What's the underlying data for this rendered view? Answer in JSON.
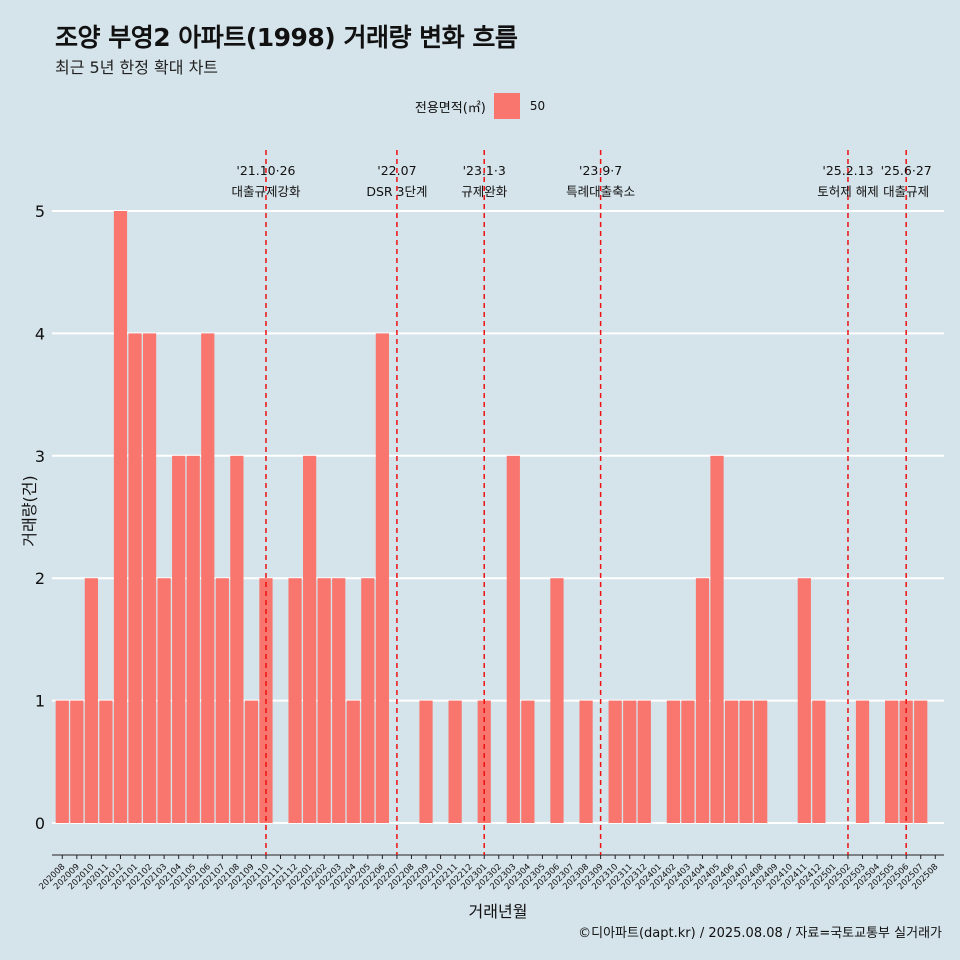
{
  "title": "조양 부영2 아파트(1998) 거래량 변화 흐름",
  "subtitle": "최근 5년 한정 확대 차트",
  "caption": "©디아파트(dapt.kr) / 2025.08.08 / 자료=국토교통부 실거래가",
  "chart_data": {
    "type": "bar",
    "xlabel": "거래년월",
    "ylabel": "거래량(건)",
    "legend": {
      "title": "전용면적(㎡)",
      "position": "top",
      "entries": [
        {
          "label": "50",
          "color": "#f8766d"
        }
      ]
    },
    "ylim": [
      0,
      5
    ],
    "yticks": [
      0,
      1,
      2,
      3,
      4,
      5
    ],
    "grid": true,
    "bar_color": "#f8766d",
    "categories": [
      "202008",
      "202009",
      "202010",
      "202011",
      "202012",
      "202101",
      "202102",
      "202103",
      "202104",
      "202105",
      "202106",
      "202107",
      "202108",
      "202109",
      "202110",
      "202111",
      "202112",
      "202201",
      "202202",
      "202203",
      "202204",
      "202205",
      "202206",
      "202207",
      "202208",
      "202209",
      "202210",
      "202211",
      "202212",
      "202301",
      "202302",
      "202303",
      "202304",
      "202305",
      "202306",
      "202307",
      "202308",
      "202309",
      "202310",
      "202311",
      "202312",
      "202401",
      "202402",
      "202403",
      "202404",
      "202405",
      "202406",
      "202407",
      "202408",
      "202409",
      "202410",
      "202411",
      "202412",
      "202501",
      "202502",
      "202503",
      "202504",
      "202505",
      "202506",
      "202507",
      "202508"
    ],
    "series": [
      {
        "name": "50",
        "values": [
          1,
          1,
          2,
          1,
          5,
          4,
          4,
          2,
          3,
          3,
          4,
          2,
          3,
          1,
          2,
          0,
          2,
          3,
          2,
          2,
          1,
          2,
          4,
          0,
          0,
          1,
          0,
          1,
          0,
          1,
          0,
          3,
          1,
          0,
          2,
          0,
          1,
          0,
          1,
          1,
          1,
          0,
          1,
          1,
          2,
          3,
          1,
          1,
          1,
          0,
          0,
          2,
          1,
          0,
          0,
          1,
          0,
          1,
          1,
          1,
          0
        ]
      }
    ],
    "annotations": [
      {
        "category": "202110",
        "date": "'21.10·26",
        "label": "대출규제강화"
      },
      {
        "category": "202207",
        "date": "'22.07",
        "label": "DSR 3단계"
      },
      {
        "category": "202301",
        "date": "'23.1·3",
        "label": "규제완화"
      },
      {
        "category": "202309",
        "date": "'23.9·7",
        "label": "특례대출축소"
      },
      {
        "category": "202502",
        "date": "'25.2.13",
        "label": "토허제 해제"
      },
      {
        "category": "202506",
        "date": "'25.6·27",
        "label": "대출규제"
      }
    ]
  }
}
